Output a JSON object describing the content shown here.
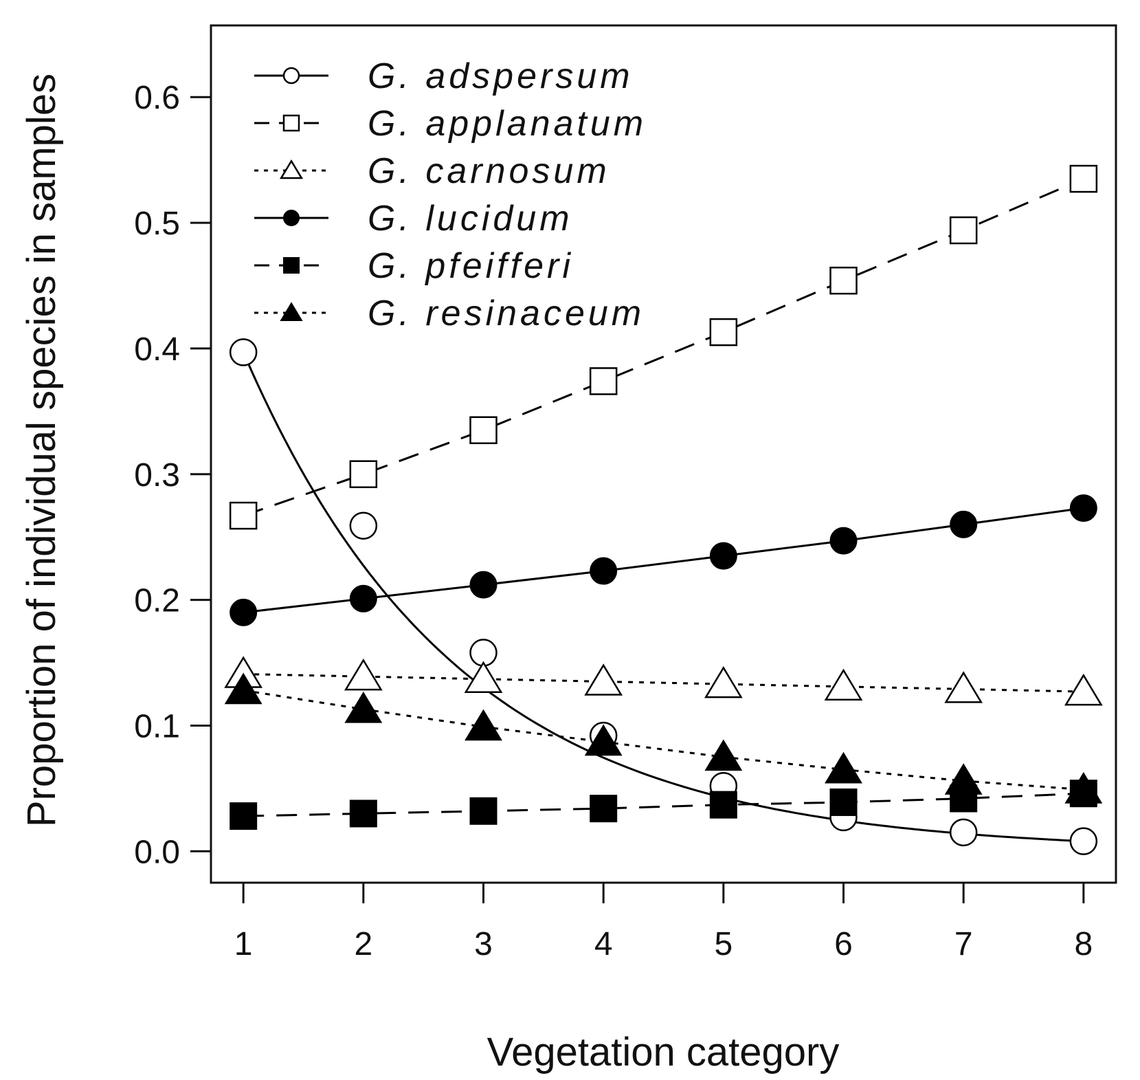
{
  "chart_data": {
    "type": "line",
    "title": "",
    "xlabel": "Vegetation category",
    "ylabel": "Proportion of individual species in samples",
    "x": [
      1,
      2,
      3,
      4,
      5,
      6,
      7,
      8
    ],
    "xticks": [
      "1",
      "2",
      "3",
      "4",
      "5",
      "6",
      "7",
      "8"
    ],
    "yticks": [
      "0.0",
      "0.1",
      "0.2",
      "0.3",
      "0.4",
      "0.5",
      "0.6"
    ],
    "xlim": [
      0.73,
      8.27
    ],
    "ylim": [
      -0.025,
      0.657
    ],
    "grid": false,
    "legend_position": "top-left",
    "series": [
      {
        "name": "G. adspersum",
        "line": "solid",
        "marker": "open-circle",
        "smooth": true,
        "values": [
          0.397,
          0.259,
          0.158,
          0.092,
          0.052,
          0.027,
          0.015,
          0.008
        ]
      },
      {
        "name": "G. applanatum",
        "line": "dashed",
        "marker": "open-square",
        "values": [
          0.267,
          0.3,
          0.335,
          0.374,
          0.413,
          0.454,
          0.494,
          0.535
        ]
      },
      {
        "name": "G. carnosum",
        "line": "dotted",
        "marker": "open-triangle",
        "values": [
          0.141,
          0.139,
          0.137,
          0.135,
          0.133,
          0.131,
          0.129,
          0.127
        ]
      },
      {
        "name": "G. lucidum",
        "line": "solid",
        "marker": "filled-circle",
        "values": [
          0.19,
          0.201,
          0.212,
          0.223,
          0.235,
          0.247,
          0.26,
          0.273
        ]
      },
      {
        "name": "G. pfeifferi",
        "line": "dashed",
        "marker": "filled-square",
        "values": [
          0.028,
          0.03,
          0.032,
          0.034,
          0.037,
          0.039,
          0.042,
          0.046
        ]
      },
      {
        "name": "G. resinaceum",
        "line": "dotted",
        "marker": "filled-triangle",
        "values": [
          0.128,
          0.113,
          0.099,
          0.087,
          0.075,
          0.065,
          0.056,
          0.049
        ]
      }
    ]
  }
}
